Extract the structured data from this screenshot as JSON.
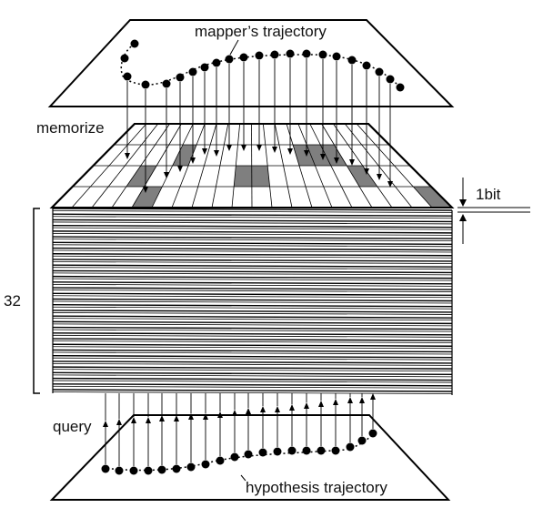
{
  "labels": {
    "mapper_trajectory": "mapper’s trajectory",
    "memorize": "memorize",
    "bit_depth": "1bit",
    "layers": "32",
    "query": "query",
    "hypothesis_trajectory": "hypothesis trajectory"
  },
  "colors": {
    "stroke": "#000000",
    "cell_fill": "#7f7f7f",
    "background": "#ffffff"
  },
  "memory": {
    "grid_columns": 20,
    "grid_rows": 4,
    "layer_count": 32
  }
}
